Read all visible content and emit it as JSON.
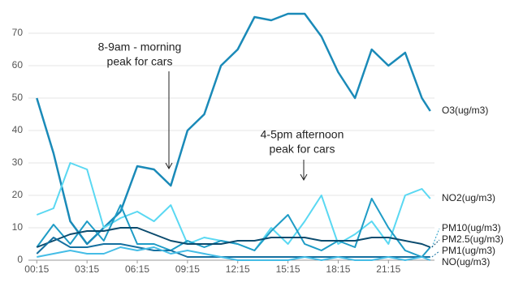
{
  "chart_data": {
    "type": "line",
    "x": [
      0.25,
      1.25,
      2.25,
      3.25,
      4.25,
      5.25,
      6.25,
      7.25,
      8.25,
      9.25,
      10.25,
      11.25,
      12.25,
      13.25,
      14.25,
      15.25,
      16.25,
      17.25,
      18.25,
      19.25,
      20.25,
      21.25,
      22.25,
      23.25,
      23.75
    ],
    "series": [
      {
        "name": "O3(ug/m3)",
        "color": "#1a8ab8",
        "values": [
          50,
          33,
          12,
          5,
          10,
          15,
          29,
          28,
          23,
          40,
          45,
          60,
          65,
          75,
          74,
          76,
          76,
          69,
          58,
          50,
          65,
          60,
          64,
          50,
          46
        ]
      },
      {
        "name": "NO2(ug/m3)",
        "color": "#5ad8f2",
        "values": [
          14,
          16,
          30,
          28,
          10,
          13,
          15,
          12,
          17,
          5,
          7,
          6,
          5,
          3,
          10,
          5,
          12,
          20,
          5,
          8,
          12,
          5,
          20,
          22,
          19
        ]
      },
      {
        "name": "PM10(ug/m3)",
        "color": "#1f9cc6",
        "values": [
          4,
          11,
          5,
          12,
          6,
          17,
          5,
          5,
          3,
          6,
          4,
          6,
          5,
          3,
          9,
          14,
          5,
          3,
          6,
          4,
          19,
          10,
          3,
          1,
          4
        ]
      },
      {
        "name": "PM2.5(ug/m3)",
        "color": "#0b4b6e",
        "values": [
          4,
          6,
          8,
          9,
          9,
          10,
          10,
          8,
          6,
          5,
          5,
          5,
          6,
          6,
          7,
          7,
          7,
          6,
          6,
          6,
          7,
          7,
          6,
          5,
          4
        ]
      },
      {
        "name": "PM1(ug/m3)",
        "color": "#1570a0",
        "values": [
          2,
          7,
          4,
          4,
          5,
          5,
          4,
          3,
          3,
          1,
          1,
          1,
          1,
          1,
          1,
          1,
          1,
          1,
          1,
          1,
          1,
          1,
          1,
          1,
          1
        ]
      },
      {
        "name": "NO(ug/m3)",
        "color": "#45bde6",
        "values": [
          1,
          2,
          3,
          2,
          2,
          4,
          3,
          4,
          2,
          3,
          2,
          1,
          0,
          0,
          0,
          0,
          1,
          0,
          1,
          0,
          0,
          1,
          0,
          1,
          0
        ]
      }
    ],
    "xlim": [
      -0.25,
      24
    ],
    "xticks": [
      {
        "value": 0.25,
        "label": "00:15"
      },
      {
        "value": 3.25,
        "label": "03:15"
      },
      {
        "value": 6.25,
        "label": "06:15"
      },
      {
        "value": 9.25,
        "label": "09:15"
      },
      {
        "value": 12.25,
        "label": "12:15"
      },
      {
        "value": 15.25,
        "label": "15:15"
      },
      {
        "value": 18.25,
        "label": "18:15"
      },
      {
        "value": 21.25,
        "label": "21:15"
      }
    ],
    "ylim": [
      0,
      76
    ],
    "yticks": [
      0,
      10,
      20,
      30,
      40,
      50,
      60,
      70
    ],
    "grid": true,
    "annotations": [
      {
        "text": [
          "8-9am - morning",
          "peak for cars"
        ]
      },
      {
        "text": [
          "4-5pm afternoon",
          "peak for cars"
        ]
      }
    ]
  }
}
